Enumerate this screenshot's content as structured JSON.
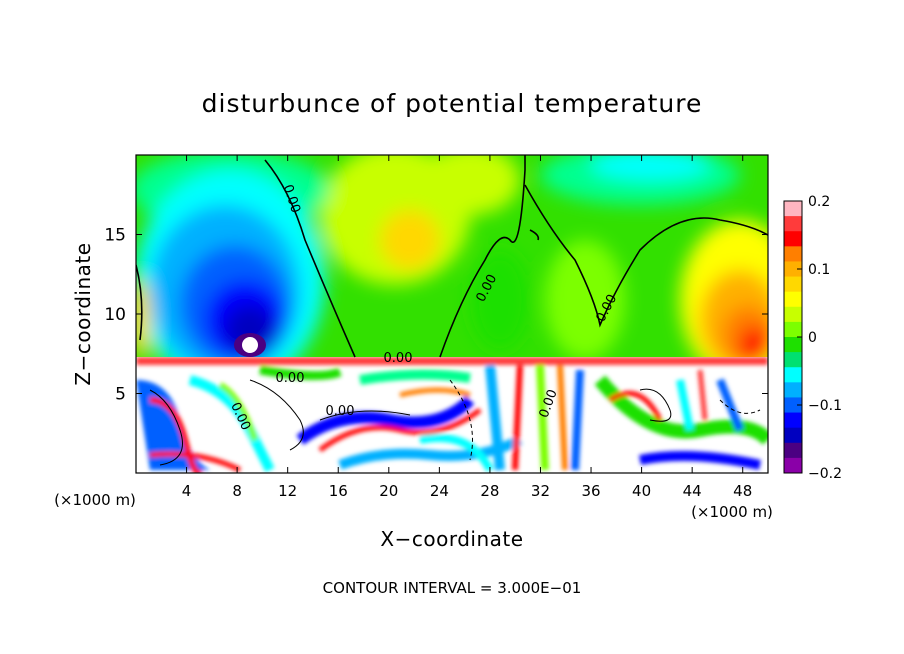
{
  "chart_data": {
    "type": "heatmap",
    "title": "disturbunce of potential temperature",
    "xlabel": "X−coordinate",
    "ylabel": "Z−coordinate",
    "x_unit_left": "(×1000 m)",
    "x_unit_right": "(×1000 m)",
    "xlim": [
      0,
      50
    ],
    "ylim": [
      0,
      20
    ],
    "x_ticks": [
      4,
      8,
      12,
      16,
      20,
      24,
      28,
      32,
      36,
      40,
      44,
      48
    ],
    "y_ticks": [
      5,
      10,
      15
    ],
    "footer": "CONTOUR INTERVAL = 3.000E−01",
    "contour_label": "0.00",
    "colorbar": {
      "min": -0.2,
      "max": 0.2,
      "tick_values": [
        0.2,
        0.1,
        0,
        -0.1,
        -0.2
      ],
      "tick_labels": [
        "0.2",
        "0.1",
        "0",
        "−0.1",
        "−0.2"
      ],
      "colors": [
        "#ffb6c1",
        "#ff3b3b",
        "#ff0000",
        "#ff7f00",
        "#ffb000",
        "#ffd800",
        "#ffff00",
        "#c8ff00",
        "#7cff00",
        "#1ee000",
        "#00e070",
        "#00ffff",
        "#00b0ff",
        "#0060ff",
        "#0000ff",
        "#0000c0",
        "#4b0082",
        "#8a00a8"
      ]
    }
  }
}
